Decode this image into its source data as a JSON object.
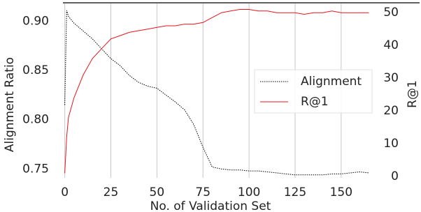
{
  "chart_data": {
    "type": "line",
    "xlabel": "No. of Validation Set",
    "ylabel": "Alignment Ratio",
    "y2label": "R@1",
    "x": [
      0,
      1,
      2,
      5,
      10,
      15,
      20,
      25,
      30,
      35,
      40,
      45,
      50,
      55,
      60,
      65,
      70,
      75,
      80,
      85,
      90,
      95,
      100,
      105,
      110,
      115,
      120,
      125,
      130,
      135,
      140,
      145,
      150,
      155,
      160,
      165
    ],
    "series": [
      {
        "name": "Alignment",
        "color": "#000000",
        "dash": true,
        "axis": "y",
        "values": [
          0.815,
          0.911,
          0.905,
          0.898,
          0.89,
          0.882,
          0.872,
          0.862,
          0.855,
          0.845,
          0.838,
          0.834,
          0.832,
          0.825,
          0.818,
          0.81,
          0.795,
          0.772,
          0.752,
          0.75,
          0.749,
          0.749,
          0.748,
          0.748,
          0.747,
          0.746,
          0.745,
          0.744,
          0.744,
          0.744,
          0.744,
          0.745,
          0.745,
          0.746,
          0.747,
          0.746
        ]
      },
      {
        "name": "R@1",
        "color": "#e8141c",
        "dash": false,
        "axis": "y2",
        "values": [
          1,
          12,
          18,
          24,
          31,
          36,
          39,
          42,
          43,
          44,
          44.5,
          45,
          45.5,
          46,
          46,
          46.5,
          46.5,
          47,
          48.5,
          50,
          50.5,
          51,
          51,
          50.5,
          50.5,
          50,
          50,
          50,
          49.5,
          50,
          50,
          50.5,
          50,
          50,
          50,
          50
        ]
      }
    ],
    "xlim": [
      -1,
      166
    ],
    "xticks": [
      0,
      25,
      50,
      75,
      100,
      125,
      150
    ],
    "ylim": [
      0.741,
      0.918
    ],
    "yticks": [
      {
        "value": 0.75,
        "label": "0.75"
      },
      {
        "value": 0.8,
        "label": "0.80"
      },
      0.85,
      {
        "value": 0.9,
        "label": "0.90"
      }
    ],
    "y2lim": [
      -0.4,
      52.8
    ],
    "y2ticks": [
      0,
      10,
      20,
      30,
      40,
      50
    ],
    "grid": true,
    "legend": "right"
  }
}
